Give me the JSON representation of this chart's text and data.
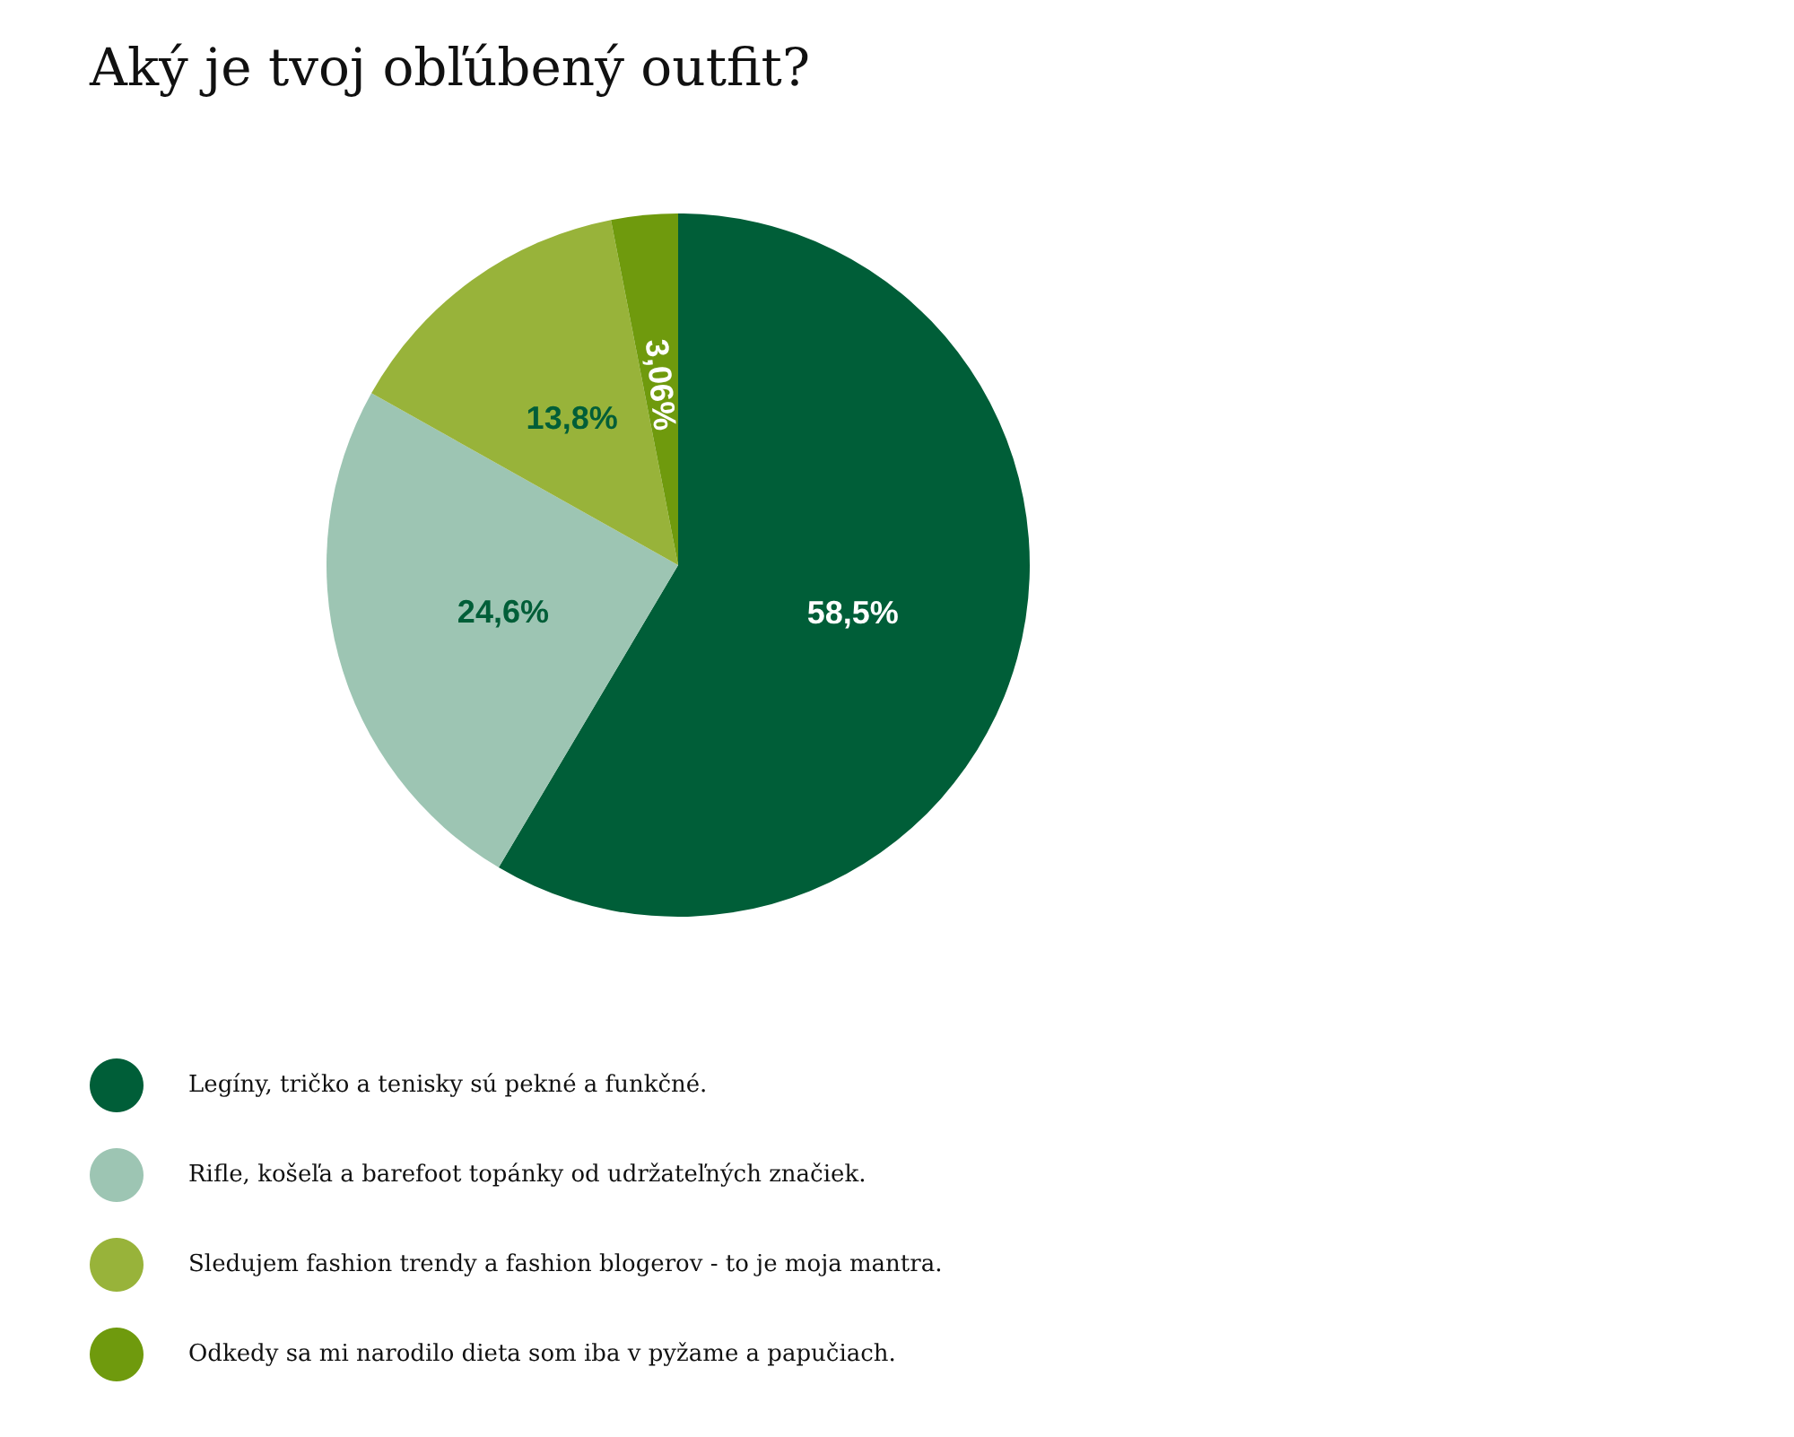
{
  "chart_data": {
    "type": "pie",
    "title": "Aký je tvoj obľúbený outfit?",
    "categories": [
      "Legíny, tričko a tenisky sú pekné a funkčné.",
      "Rifle, košeľa a barefoot topánky od udržateľných značiek.",
      "Sledujem fashion trendy a fashion blogerov - to je moja mantra.",
      "Odkedy sa mi narodilo dieta som iba v pyžame a papučiach."
    ],
    "values": [
      58.5,
      24.6,
      13.8,
      3.06
    ],
    "value_labels": [
      "58,5%",
      "24,6%",
      "13,8%",
      "3,06%"
    ],
    "colors": [
      "#005e38",
      "#9dc5b3",
      "#98b33a",
      "#6f9a0d"
    ],
    "legend": "bottom left"
  }
}
